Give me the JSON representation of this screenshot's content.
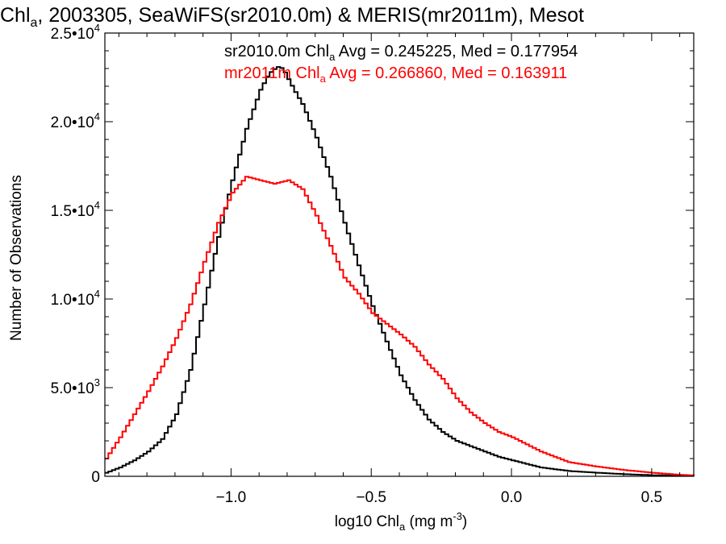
{
  "chart_data": {
    "type": "line",
    "title": "Chl",
    "title_sub": "a",
    "title_rest": ", 2003305, SeaWiFS(sr2010.0m) & MERIS(mr2011m), Mesot",
    "xlabel_pre": "log10 Chl",
    "xlabel_sub": "a",
    "xlabel_unit": " (mg m",
    "xlabel_unit_sup": "-3",
    "xlabel_post": ")",
    "ylabel": "Number of Observations",
    "xlim": [
      -1.45,
      0.65
    ],
    "ylim": [
      0,
      25000
    ],
    "x_ticks": [
      {
        "value": -1.0,
        "label": "−1.0"
      },
      {
        "value": -0.5,
        "label": "−0.5"
      },
      {
        "value": 0.0,
        "label": "0.0"
      },
      {
        "value": 0.5,
        "label": "0.5"
      }
    ],
    "y_ticks": [
      {
        "value": 0,
        "mant": "0",
        "exp": ""
      },
      {
        "value": 5000,
        "mant": "5.0•10",
        "exp": "3"
      },
      {
        "value": 10000,
        "mant": "1.0•10",
        "exp": "4"
      },
      {
        "value": 15000,
        "mant": "1.5•10",
        "exp": "4"
      },
      {
        "value": 20000,
        "mant": "2.0•10",
        "exp": "4"
      },
      {
        "value": 25000,
        "mant": "2.5•10",
        "exp": "4"
      }
    ],
    "series": [
      {
        "name": "sr2010.0m",
        "color": "#000000",
        "stat_pre": "sr2010.0m Chl",
        "stat_sub": "a",
        "stat_post": " Avg = 0.245225, Med = 0.177954",
        "x": [
          -1.45,
          -1.4,
          -1.35,
          -1.3,
          -1.25,
          -1.2,
          -1.15,
          -1.1,
          -1.05,
          -1.0,
          -0.95,
          -0.9,
          -0.87,
          -0.84,
          -0.82,
          -0.8,
          -0.78,
          -0.75,
          -0.7,
          -0.65,
          -0.6,
          -0.55,
          -0.5,
          -0.45,
          -0.4,
          -0.35,
          -0.3,
          -0.25,
          -0.2,
          -0.15,
          -0.1,
          -0.05,
          0.0,
          0.05,
          0.1,
          0.15,
          0.2,
          0.3,
          0.4,
          0.5,
          0.6,
          0.65
        ],
        "y": [
          200,
          500,
          900,
          1400,
          2100,
          3500,
          6000,
          9700,
          13500,
          16700,
          19600,
          21800,
          22700,
          23100,
          23000,
          22400,
          21800,
          21000,
          19100,
          16900,
          14300,
          11900,
          9600,
          7600,
          5700,
          4300,
          3200,
          2500,
          2000,
          1700,
          1400,
          1100,
          900,
          700,
          500,
          400,
          300,
          200,
          120,
          60,
          30,
          20
        ]
      },
      {
        "name": "mr2011m",
        "color": "#ff0000",
        "stat_pre": "mr2011m Chl",
        "stat_sub": "a",
        "stat_post": " Avg = 0.266860, Med = 0.163911",
        "x": [
          -1.45,
          -1.4,
          -1.35,
          -1.3,
          -1.25,
          -1.2,
          -1.15,
          -1.1,
          -1.05,
          -1.0,
          -0.95,
          -0.9,
          -0.85,
          -0.8,
          -0.75,
          -0.7,
          -0.65,
          -0.6,
          -0.55,
          -0.5,
          -0.45,
          -0.4,
          -0.35,
          -0.3,
          -0.25,
          -0.2,
          -0.15,
          -0.1,
          -0.05,
          0.0,
          0.05,
          0.1,
          0.15,
          0.2,
          0.3,
          0.4,
          0.5,
          0.6,
          0.65
        ],
        "y": [
          1000,
          2200,
          3500,
          4800,
          6200,
          7800,
          9700,
          12100,
          14300,
          16000,
          16900,
          16700,
          16500,
          16700,
          16200,
          14700,
          13000,
          11200,
          10300,
          9200,
          8600,
          8000,
          7300,
          6300,
          5500,
          4400,
          3600,
          3000,
          2500,
          2200,
          1800,
          1400,
          1100,
          800,
          550,
          350,
          200,
          80,
          50
        ]
      }
    ]
  }
}
